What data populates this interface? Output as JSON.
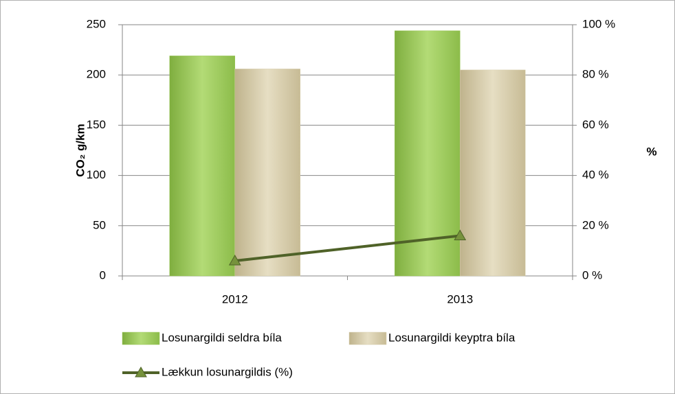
{
  "chart_data": {
    "type": "bar",
    "categories": [
      "2012",
      "2013"
    ],
    "series": [
      {
        "name": "Losunargildi seldra bíla",
        "color": "#9bc75a",
        "values": [
          219,
          244
        ]
      },
      {
        "name": "Losunargildi keyptra bíla",
        "color": "#d6ccaa",
        "values": [
          206,
          205
        ]
      },
      {
        "name": "Lækkun losunargildis (%)",
        "type": "line",
        "axis": "y2",
        "color": "#4f6228",
        "values": [
          6,
          16
        ]
      }
    ],
    "ylabel": "CO₂ g/km",
    "y2label": "%",
    "ylim": [
      0,
      250
    ],
    "yticks": [
      0,
      50,
      100,
      150,
      200,
      250
    ],
    "y2lim": [
      0,
      100
    ],
    "y2ticks": [
      {
        "value": 0,
        "label": "0 %"
      },
      {
        "value": 20,
        "label": "20 %"
      },
      {
        "value": 40,
        "label": "40 %"
      },
      {
        "value": 60,
        "label": "60 %"
      },
      {
        "value": 80,
        "label": "80 %"
      },
      {
        "value": 100,
        "label": "100 %"
      }
    ],
    "grid": true,
    "legend": "bottom"
  }
}
